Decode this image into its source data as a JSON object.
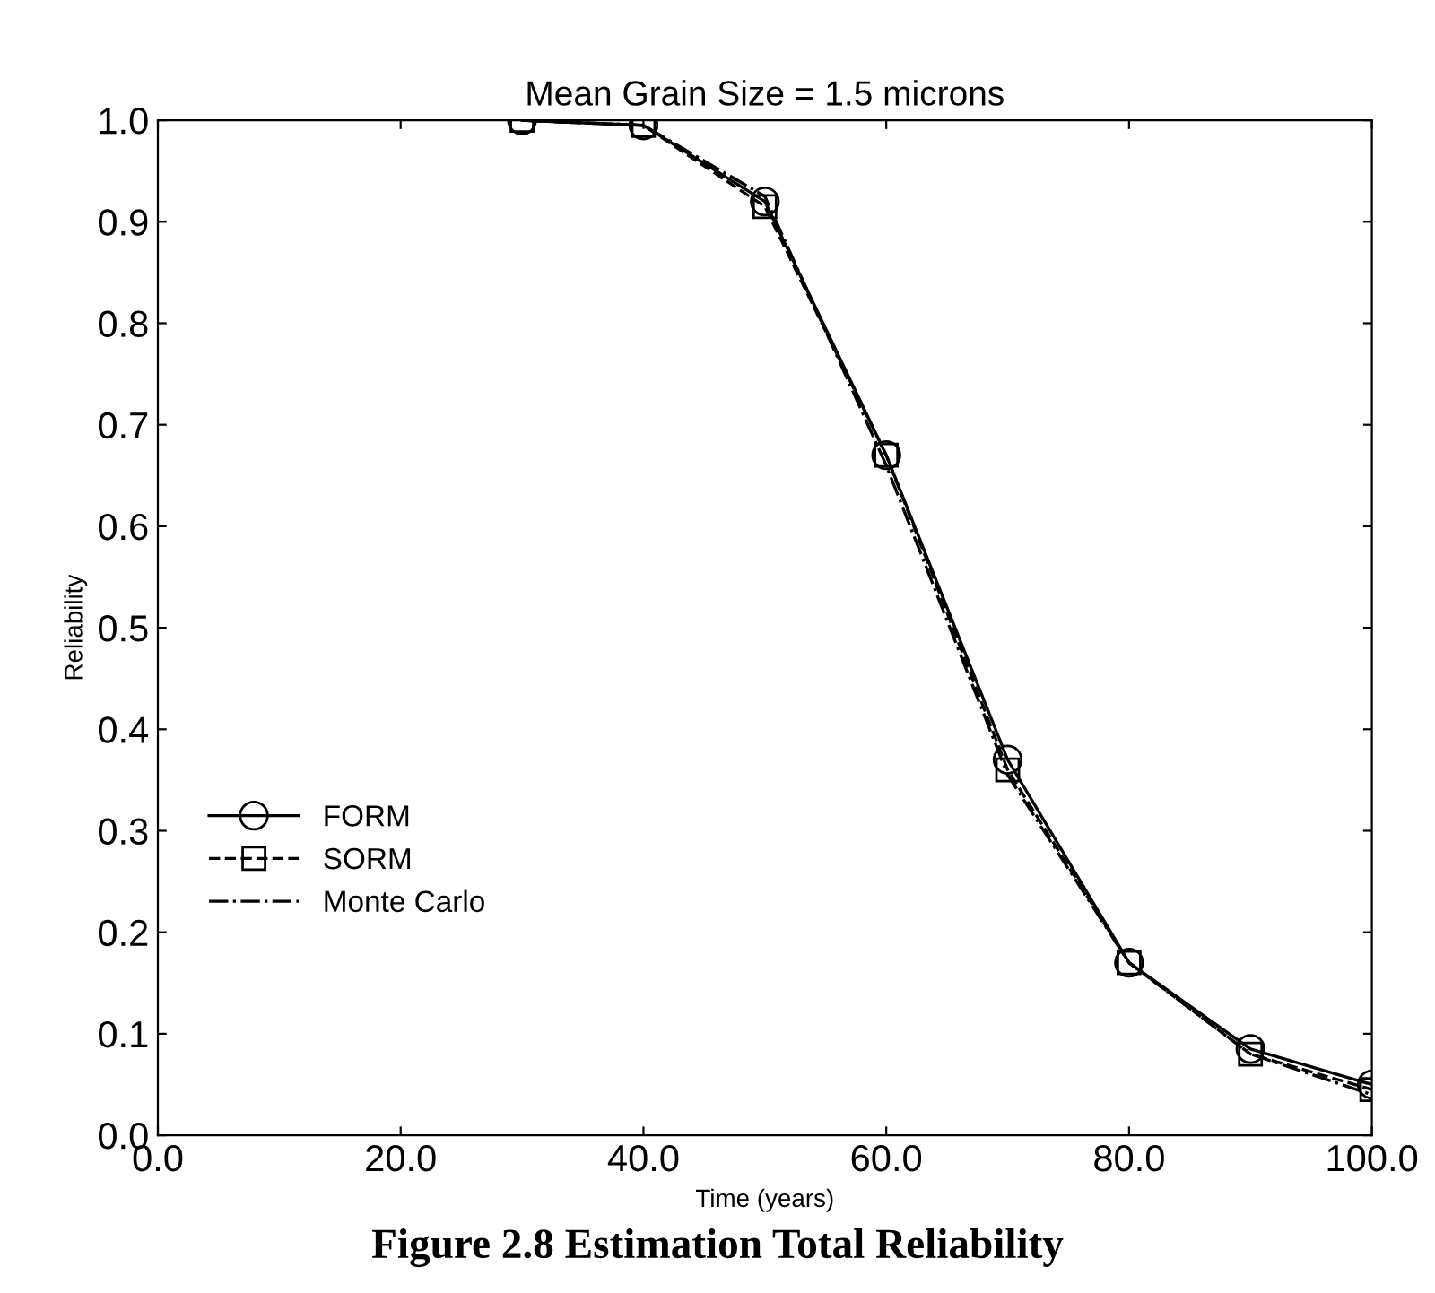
{
  "chart_data": {
    "type": "line",
    "title": "Mean Grain Size = 1.5 microns",
    "xlabel": "Time (years)",
    "ylabel": "Reliability",
    "x": [
      30,
      40,
      50,
      60,
      70,
      80,
      90,
      100
    ],
    "series": [
      {
        "name": "FORM",
        "color": "#000000",
        "marker": "circle",
        "line_style": "solid",
        "values": [
          1.0,
          0.995,
          0.92,
          0.67,
          0.37,
          0.17,
          0.085,
          0.05
        ]
      },
      {
        "name": "SORM",
        "color": "#000000",
        "marker": "square",
        "line_style": "dashed",
        "values": [
          1.0,
          0.995,
          0.915,
          0.67,
          0.36,
          0.17,
          0.08,
          0.045
        ]
      },
      {
        "name": "Monte Carlo",
        "color": "#000000",
        "marker": "none",
        "line_style": "dashdot",
        "values": [
          1.0,
          0.995,
          0.925,
          0.66,
          0.355,
          0.17,
          0.08,
          0.04
        ]
      }
    ],
    "xlim": [
      0,
      100
    ],
    "ylim": [
      0,
      1.0
    ],
    "xticks": [
      {
        "value": 0,
        "label": "0.0"
      },
      {
        "value": 20,
        "label": "20.0"
      },
      {
        "value": 40,
        "label": "40.0"
      },
      {
        "value": 60,
        "label": "60.0"
      },
      {
        "value": 80,
        "label": "80.0"
      },
      {
        "value": 100,
        "label": "100.0"
      }
    ],
    "yticks": [
      {
        "value": 0,
        "label": "0.0"
      },
      0.1,
      0.2,
      0.3,
      0.4,
      0.5,
      0.6,
      0.7,
      0.8,
      0.9,
      {
        "value": 1.0,
        "label": "1.0"
      }
    ],
    "grid": false,
    "legend": "left",
    "annotations": [
      "Figure 2.8 Estimation Total Reliability"
    ]
  }
}
